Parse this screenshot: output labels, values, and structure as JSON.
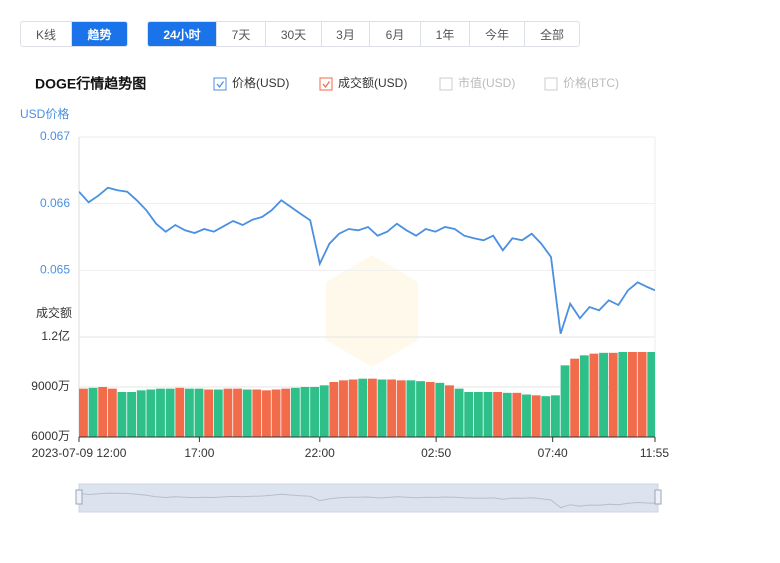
{
  "tabs": {
    "items": [
      "K线",
      "趋势"
    ],
    "active": 1
  },
  "periods": {
    "items": [
      "24小时",
      "7天",
      "30天",
      "3月",
      "6月",
      "1年",
      "今年",
      "全部"
    ],
    "active": 0
  },
  "chart_data": {
    "type": "line",
    "title": "DOGE行情趋势图",
    "inactive_legend": [
      "市值(USD)",
      "价格(BTC)"
    ],
    "ylabel": "USD价格",
    "y2label": "成交额",
    "x": [
      0,
      0.4,
      0.8,
      1.2,
      1.6,
      2.0,
      2.4,
      2.8,
      3.2,
      3.6,
      4.0,
      4.4,
      4.8,
      5.2,
      5.6,
      6.0,
      6.4,
      6.8,
      7.2,
      7.6,
      8.0,
      8.4,
      8.8,
      9.2,
      9.6,
      10.0,
      10.4,
      10.8,
      11.2,
      11.6,
      12.0,
      12.4,
      12.8,
      13.2,
      13.6,
      14.0,
      14.4,
      14.8,
      15.2,
      15.6,
      16.0,
      16.4,
      16.8,
      17.2,
      17.6,
      18.0,
      18.4,
      18.8,
      19.2,
      19.6,
      20.0,
      20.4,
      20.8,
      21.2,
      21.6,
      22.0,
      22.4,
      22.8,
      23.2,
      23.6,
      23.92
    ],
    "xlim": [
      0,
      23.92
    ],
    "xticks": [
      {
        "value": 0,
        "label": "2023-07-09 12:00"
      },
      {
        "value": 5,
        "label": "17:00"
      },
      {
        "value": 10,
        "label": "22:00"
      },
      {
        "value": 14.83,
        "label": "02:50"
      },
      {
        "value": 19.67,
        "label": "07:40"
      },
      {
        "value": 23.92,
        "label": "11:55"
      }
    ],
    "ylim": [
      0.064,
      0.067
    ],
    "yticks": [
      0.065,
      0.066,
      0.067
    ],
    "y2lim": [
      60000000,
      120000000
    ],
    "y2ticks": [
      {
        "value": 60000000,
        "label": "6000万"
      },
      {
        "value": 90000000,
        "label": "9000万"
      },
      {
        "value": 120000000,
        "label": "1.2亿"
      }
    ],
    "grid": true,
    "series": [
      {
        "name": "价格(USD)",
        "type": "line",
        "color": "#4a90e2",
        "values": [
          0.06618,
          0.06602,
          0.06612,
          0.06624,
          0.0662,
          0.06618,
          0.06605,
          0.0659,
          0.0657,
          0.06558,
          0.06568,
          0.0656,
          0.06556,
          0.06562,
          0.06558,
          0.06566,
          0.06574,
          0.06568,
          0.06576,
          0.0658,
          0.0659,
          0.06605,
          0.06595,
          0.06585,
          0.06575,
          0.0651,
          0.0654,
          0.06555,
          0.06562,
          0.0656,
          0.06565,
          0.06552,
          0.06558,
          0.0657,
          0.0656,
          0.06552,
          0.06562,
          0.06558,
          0.06565,
          0.06562,
          0.06552,
          0.06548,
          0.06545,
          0.06552,
          0.0653,
          0.06548,
          0.06545,
          0.06555,
          0.0654,
          0.0652,
          0.06405,
          0.0645,
          0.06428,
          0.06445,
          0.0644,
          0.06455,
          0.06448,
          0.0647,
          0.06482,
          0.06475,
          0.0647
        ]
      },
      {
        "name": "成交额(USD)",
        "type": "bar",
        "axis": "y2",
        "color": "#f26b4b",
        "up_color": "#f26b4b",
        "down_color": "#2fc08a",
        "values": [
          89000000,
          89500000,
          90000000,
          89000000,
          87000000,
          87000000,
          88000000,
          88500000,
          89000000,
          89000000,
          89500000,
          89000000,
          89000000,
          88500000,
          88500000,
          89000000,
          89000000,
          88500000,
          88500000,
          88000000,
          88500000,
          89000000,
          89500000,
          90000000,
          90000000,
          91000000,
          93000000,
          94000000,
          94500000,
          95000000,
          95000000,
          94500000,
          94500000,
          94000000,
          94000000,
          93500000,
          93000000,
          92500000,
          91000000,
          89000000,
          87000000,
          87000000,
          87000000,
          87000000,
          86500000,
          86500000,
          85500000,
          85000000,
          84500000,
          85000000,
          103000000,
          107000000,
          109000000,
          110000000,
          110500000,
          110500000,
          111000000,
          111000000,
          111000000,
          111000000,
          111000000
        ]
      }
    ]
  }
}
